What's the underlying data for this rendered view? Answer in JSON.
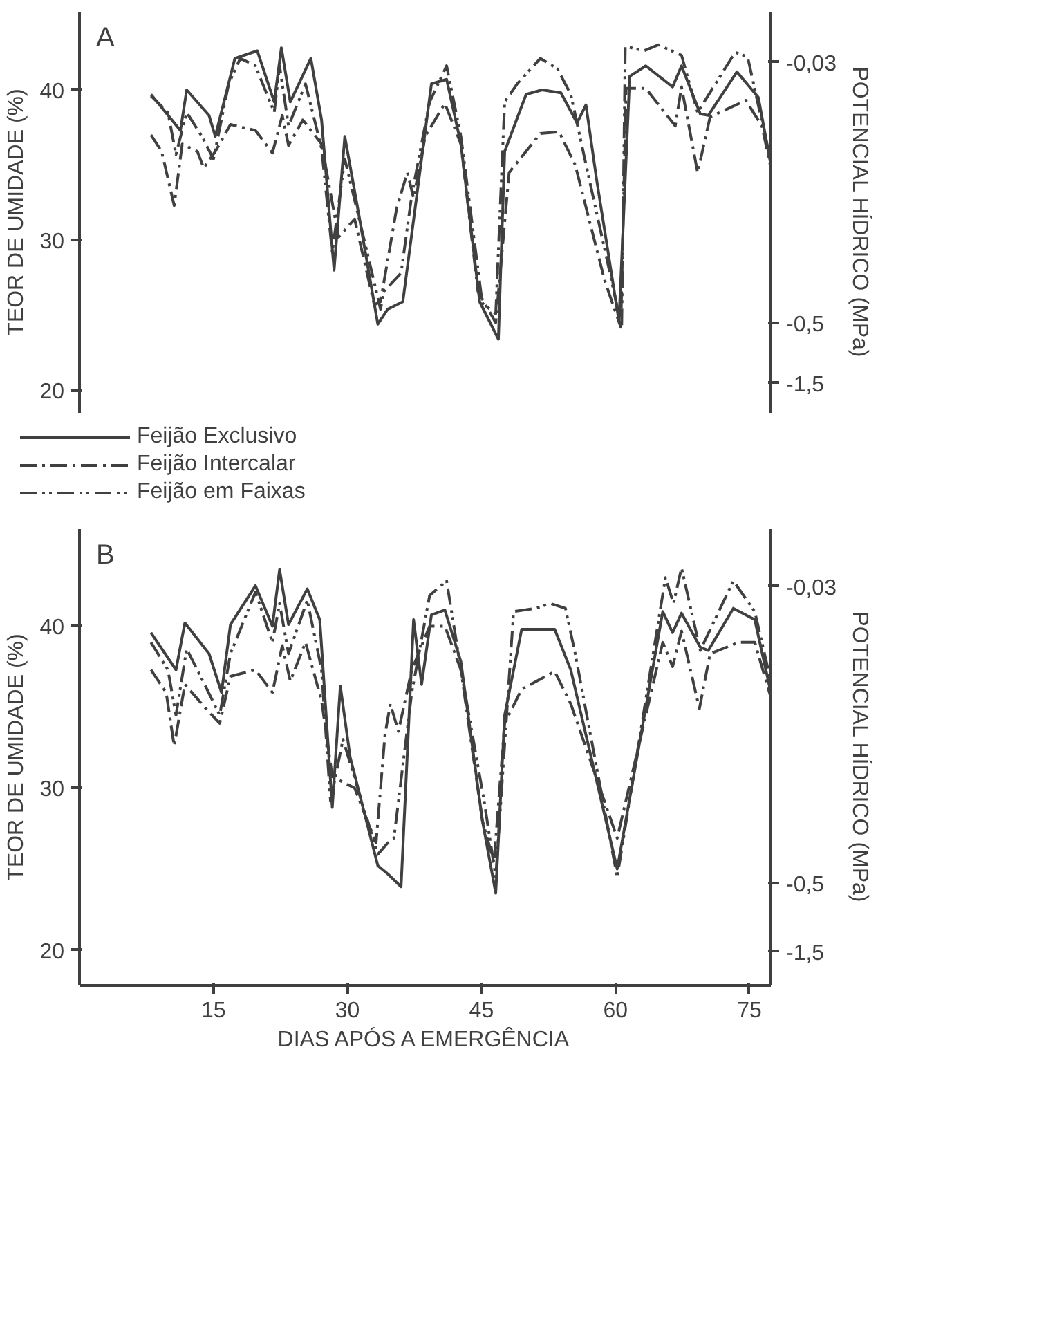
{
  "chart_data": [
    {
      "type": "line",
      "title": "A",
      "ylabel": "TEOR DE UMIDADE (%)",
      "y2label": "POTENCIAL HÍDRICO (MPa)",
      "xlim": [
        0,
        77.4
      ],
      "ylim": [
        18.5,
        45.2
      ],
      "yticks": [
        20,
        30,
        40
      ],
      "y2_categories": [
        null,
        null,
        "-0,03",
        null,
        null,
        null,
        null,
        null,
        null,
        null,
        null,
        null,
        null,
        null,
        null,
        "-0,5",
        null,
        null,
        "-1,5",
        null
      ],
      "tick_labels": "y",
      "legend": "bottom",
      "series": [
        {
          "name": "Feijão Exclusivo",
          "color": "#404040",
          "line_style": "solid",
          "x": [
            8.0,
            11.3,
            12.0,
            14.5,
            15.2,
            17.4,
            19.9,
            21.8,
            22.6,
            23.6,
            25.9,
            27.1,
            28.5,
            29.7,
            31.3,
            33.4,
            34.5,
            36.2,
            39.4,
            41.1,
            42.7,
            44.8,
            46.9,
            47.6,
            50.0,
            51.8,
            53.9,
            55.7,
            56.7,
            57.9,
            60.4,
            61.6,
            63.4,
            66.4,
            67.4,
            69.5,
            70.4,
            73.6,
            76.0,
            77.4
          ],
          "values": [
            39.7,
            37.3,
            40.0,
            38.3,
            36.9,
            42.1,
            42.6,
            39.2,
            42.8,
            39.2,
            42.1,
            38.0,
            28.0,
            36.9,
            31.6,
            24.4,
            25.4,
            25.9,
            40.4,
            40.7,
            36.4,
            25.9,
            23.4,
            35.9,
            39.7,
            40.0,
            39.8,
            37.8,
            39.0,
            34.0,
            24.6,
            40.9,
            41.6,
            40.2,
            41.6,
            38.4,
            38.3,
            41.2,
            39.5,
            35.0
          ]
        },
        {
          "name": "Feijão Intercalar",
          "color": "#404040",
          "line_style": "dashdot",
          "x": [
            8.0,
            9.2,
            10.6,
            11.5,
            13.2,
            13.9,
            15.2,
            16.9,
            19.7,
            21.6,
            22.7,
            23.4,
            25.0,
            27.1,
            29.0,
            30.8,
            33.0,
            33.7,
            35.5,
            36.7,
            37.4,
            38.7,
            40.9,
            42.7,
            44.6,
            46.6,
            48.1,
            51.6,
            53.7,
            55.5,
            58.8,
            60.6,
            61.2,
            63.4,
            66.7,
            67.4,
            69.2,
            70.6,
            74.6,
            76.4,
            77.4
          ],
          "values": [
            37.0,
            35.9,
            32.3,
            36.4,
            35.9,
            34.8,
            35.9,
            37.7,
            37.3,
            35.8,
            38.3,
            36.3,
            38.0,
            36.4,
            30.2,
            31.4,
            25.7,
            25.9,
            32.1,
            34.5,
            32.8,
            36.9,
            39.1,
            36.4,
            26.6,
            24.5,
            34.5,
            37.1,
            37.2,
            35.0,
            27.3,
            24.2,
            40.1,
            40.1,
            37.6,
            40.2,
            34.5,
            38.2,
            39.3,
            37.6,
            34.8
          ]
        },
        {
          "name": "Feijão em Faixas",
          "color": "#404040",
          "line_style": "dashdotdot",
          "x": [
            8.0,
            9.9,
            10.8,
            12.0,
            13.7,
            15.0,
            16.7,
            18.0,
            19.7,
            21.8,
            22.4,
            23.4,
            25.3,
            27.1,
            28.3,
            29.7,
            31.8,
            33.7,
            34.1,
            36.0,
            37.2,
            39.2,
            41.1,
            42.7,
            45.1,
            46.6,
            47.6,
            49.0,
            51.6,
            53.5,
            55.0,
            56.9,
            59.2,
            60.7,
            61.1,
            63.2,
            64.8,
            67.4,
            69.2,
            73.4,
            74.8,
            77.4
          ],
          "values": [
            39.6,
            38.5,
            35.7,
            38.5,
            36.9,
            35.4,
            40.4,
            42.1,
            41.6,
            38.5,
            41.6,
            37.6,
            40.4,
            36.1,
            29.2,
            35.4,
            30.2,
            25.4,
            26.6,
            27.8,
            33.0,
            39.2,
            41.6,
            36.9,
            25.8,
            25.1,
            39.2,
            40.4,
            42.1,
            41.4,
            39.7,
            34.5,
            28.3,
            24.2,
            42.9,
            42.6,
            43.0,
            42.3,
            38.5,
            42.5,
            42.2,
            35.2
          ]
        }
      ]
    },
    {
      "type": "line",
      "title": "B",
      "xlabel": "DIAS APÓS A EMERGÊNCIA",
      "ylabel": "TEOR DE UMIDADE (%)",
      "y2label": "POTENCIAL HÍDRICO (MPa)",
      "xlim": [
        0,
        77.4
      ],
      "xticks": [
        15,
        30,
        45,
        60,
        75
      ],
      "ylim": [
        17.8,
        46
      ],
      "yticks": [
        20,
        30,
        40
      ],
      "y2_categories": [
        null,
        null,
        "-0,03",
        null,
        null,
        null,
        null,
        null,
        null,
        null,
        null,
        null,
        null,
        null,
        null,
        "-0,5",
        null,
        null,
        "-1,5",
        null
      ],
      "series": [
        {
          "color": "#404040",
          "line_style": "solid",
          "x": [
            8.0,
            10.8,
            11.8,
            14.5,
            15.9,
            16.9,
            19.7,
            21.6,
            22.4,
            23.4,
            25.5,
            26.9,
            28.3,
            29.2,
            30.3,
            33.4,
            34.5,
            36.0,
            37.4,
            38.3,
            39.4,
            40.9,
            42.7,
            45.1,
            46.6,
            47.6,
            49.5,
            53.2,
            55.0,
            60.2,
            65.3,
            66.4,
            67.4,
            69.5,
            70.4,
            73.2,
            75.6,
            77.4
          ],
          "values": [
            39.6,
            37.3,
            40.2,
            38.3,
            35.9,
            40.1,
            42.5,
            40.0,
            43.5,
            40.1,
            42.3,
            40.4,
            28.8,
            36.3,
            31.9,
            25.2,
            24.7,
            23.9,
            40.4,
            36.4,
            40.7,
            41.0,
            37.8,
            28.0,
            23.5,
            34.5,
            39.8,
            39.8,
            37.3,
            25.0,
            40.9,
            39.6,
            40.8,
            38.7,
            38.5,
            41.1,
            40.4,
            35.9
          ]
        },
        {
          "color": "#404040",
          "line_style": "dashdot",
          "x": [
            8.0,
            9.7,
            10.6,
            11.8,
            14.0,
            15.7,
            16.9,
            19.7,
            21.6,
            22.7,
            23.6,
            25.3,
            27.1,
            28.3,
            30.8,
            33.2,
            34.2,
            34.8,
            35.7,
            37.2,
            39.2,
            40.9,
            42.7,
            45.1,
            46.4,
            47.6,
            49.5,
            53.2,
            55.0,
            60.2,
            65.3,
            66.4,
            67.4,
            69.4,
            70.6,
            73.8,
            75.6,
            77.4
          ],
          "values": [
            37.3,
            35.9,
            32.6,
            36.4,
            35.0,
            34.0,
            36.9,
            37.3,
            35.9,
            38.8,
            36.6,
            39.0,
            35.4,
            30.7,
            30.0,
            26.6,
            33.3,
            35.2,
            33.5,
            37.3,
            40.0,
            40.0,
            37.3,
            28.0,
            25.4,
            34.0,
            36.1,
            37.2,
            35.2,
            26.9,
            39.0,
            37.5,
            39.7,
            34.9,
            38.3,
            39.0,
            39.0,
            35.6
          ]
        },
        {
          "color": "#404040",
          "line_style": "dashdotdot",
          "x": [
            8.0,
            9.9,
            10.8,
            12.0,
            14.0,
            15.7,
            16.9,
            19.7,
            21.6,
            22.4,
            23.4,
            25.5,
            27.1,
            28.1,
            29.5,
            31.3,
            33.4,
            34.5,
            35.2,
            37.2,
            39.2,
            41.1,
            42.7,
            45.3,
            46.6,
            48.6,
            51.1,
            52.7,
            54.4,
            55.5,
            60.2,
            65.6,
            66.5,
            67.4,
            69.5,
            73.2,
            75.6,
            77.4
          ],
          "values": [
            39.0,
            37.3,
            34.5,
            38.6,
            36.4,
            34.5,
            38.3,
            42.1,
            39.0,
            41.4,
            38.3,
            41.6,
            37.3,
            29.2,
            33.0,
            29.7,
            25.9,
            26.6,
            26.9,
            35.9,
            41.9,
            42.8,
            37.3,
            29.2,
            24.5,
            40.9,
            41.1,
            41.4,
            41.1,
            38.3,
            24.5,
            43.0,
            41.4,
            43.6,
            38.5,
            42.8,
            40.9,
            36.6
          ]
        }
      ]
    }
  ]
}
